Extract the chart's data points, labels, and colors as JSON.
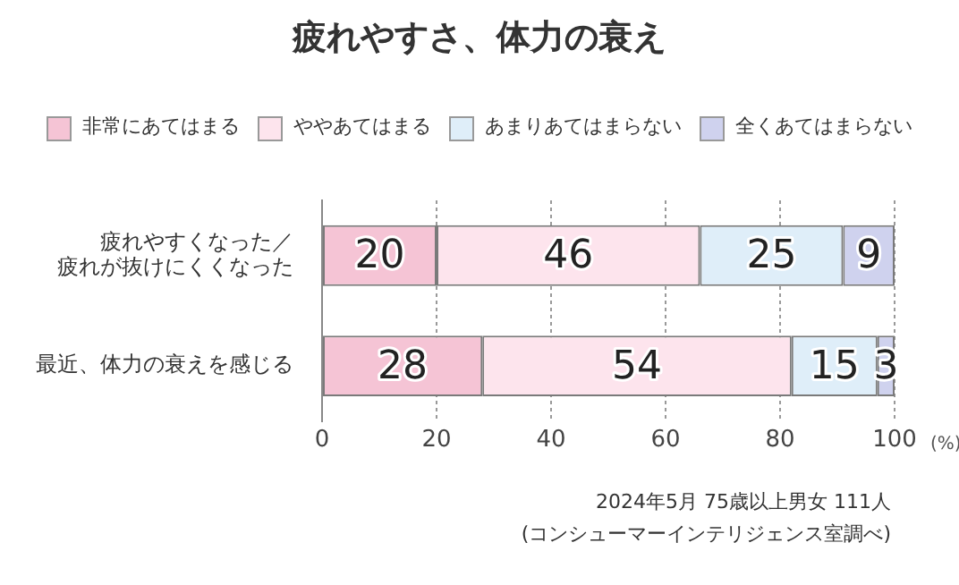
{
  "chart_data": {
    "type": "bar",
    "orientation": "horizontal",
    "stacked": true,
    "title": "疲れやすさ、体力の衰え",
    "xlabel": "(%)",
    "categories": [
      "疲れやすくなった／疲れが抜けにくくなった",
      "最近、体力の衰えを感じる"
    ],
    "series": [
      {
        "name": "非常にあてはまる",
        "color": "#f5c4d5",
        "values": [
          20,
          28
        ]
      },
      {
        "name": "ややあてはまる",
        "color": "#fde4ed",
        "values": [
          46,
          54
        ]
      },
      {
        "name": "あまりあてはまらない",
        "color": "#dfeef9",
        "values": [
          25,
          15
        ]
      },
      {
        "name": "全くあてはまらない",
        "color": "#cfd2ee",
        "values": [
          9,
          3
        ]
      }
    ],
    "xlim": [
      0,
      100
    ],
    "xticks": [
      0,
      20,
      40,
      60,
      80,
      100
    ],
    "grid": "x",
    "legend": "top",
    "data_labels": true,
    "annotations": [
      "2024年5月 75歳以上男女 111人",
      "(コンシューマーインテリジェンス室調べ)"
    ]
  }
}
